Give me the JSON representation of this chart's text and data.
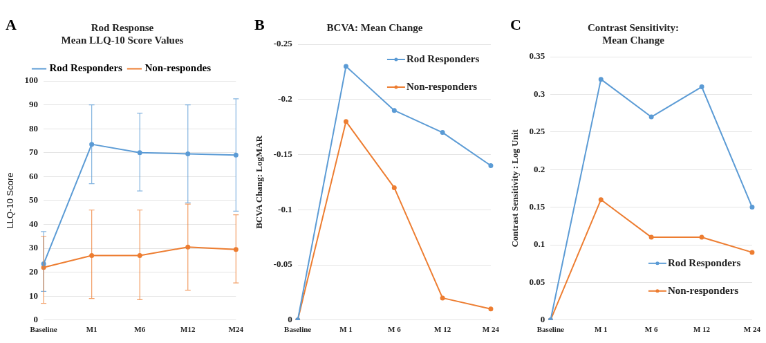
{
  "chart_data": [
    {
      "type": "line",
      "title": "Rod Response\nMean LLQ-10 Score Values",
      "ylabel": "LLQ-10 Score",
      "annotations": [
        "A"
      ],
      "categories": [
        "Baseline",
        "M1",
        "M6",
        "M12",
        "M24"
      ],
      "series": [
        {
          "name": "Rod Responders",
          "color": "#5b9bd5",
          "values": [
            23.5,
            73.5,
            70,
            69.5,
            69
          ],
          "errors": [
            [
              12,
              37
            ],
            [
              57,
              90
            ],
            [
              54,
              86.5
            ],
            [
              49,
              90
            ],
            [
              45.5,
              92.5
            ]
          ]
        },
        {
          "name": "Non-respondes",
          "color": "#ed7d31",
          "values": [
            22,
            27,
            27,
            30.5,
            29.5
          ],
          "errors": [
            [
              7,
              35
            ],
            [
              9,
              46
            ],
            [
              8.5,
              46
            ],
            [
              12.5,
              48.5
            ],
            [
              15.5,
              44
            ]
          ]
        }
      ],
      "ylim": [
        0,
        100
      ],
      "yticks": [
        0,
        10,
        20,
        30,
        40,
        50,
        60,
        70,
        80,
        90,
        100
      ],
      "grid": "y",
      "legend": "top",
      "marker": "circle"
    },
    {
      "type": "line",
      "title": "BCVA: Mean Change",
      "ylabel": "BCVA Chang: LogMAR",
      "annotations": [
        "B"
      ],
      "categories": [
        "Baseline",
        "M 1",
        "M 6",
        "M 12",
        "M 24"
      ],
      "series": [
        {
          "name": "Rod Responders",
          "color": "#5b9bd5",
          "values": [
            0,
            -0.23,
            -0.19,
            -0.17,
            -0.14
          ]
        },
        {
          "name": "Non-responders",
          "color": "#ed7d31",
          "values": [
            0,
            -0.18,
            -0.12,
            -0.02,
            -0.01
          ]
        }
      ],
      "ylim": [
        0,
        -0.25
      ],
      "yticks": [
        0,
        -0.05,
        -0.1,
        -0.15,
        -0.2,
        -0.25
      ],
      "grid": "y",
      "legend": "top right",
      "marker": "circle"
    },
    {
      "type": "line",
      "title": "Contrast Sensitivity:\nMean Change",
      "ylabel": "Contrast Sensitivity : Log Unit",
      "annotations": [
        "C"
      ],
      "categories": [
        "Baseline",
        "M 1",
        "M 6",
        "M 12",
        "M 24"
      ],
      "series": [
        {
          "name": "Rod Responders",
          "color": "#5b9bd5",
          "values": [
            0,
            0.32,
            0.27,
            0.31,
            0.15
          ]
        },
        {
          "name": "Non-responders",
          "color": "#ed7d31",
          "values": [
            0,
            0.16,
            0.11,
            0.11,
            0.09
          ]
        }
      ],
      "ylim": [
        0,
        0.35
      ],
      "yticks": [
        0,
        0.05,
        0.1,
        0.15,
        0.2,
        0.25,
        0.3,
        0.35
      ],
      "grid": "y",
      "legend": "bottom right",
      "marker": "circle"
    }
  ]
}
